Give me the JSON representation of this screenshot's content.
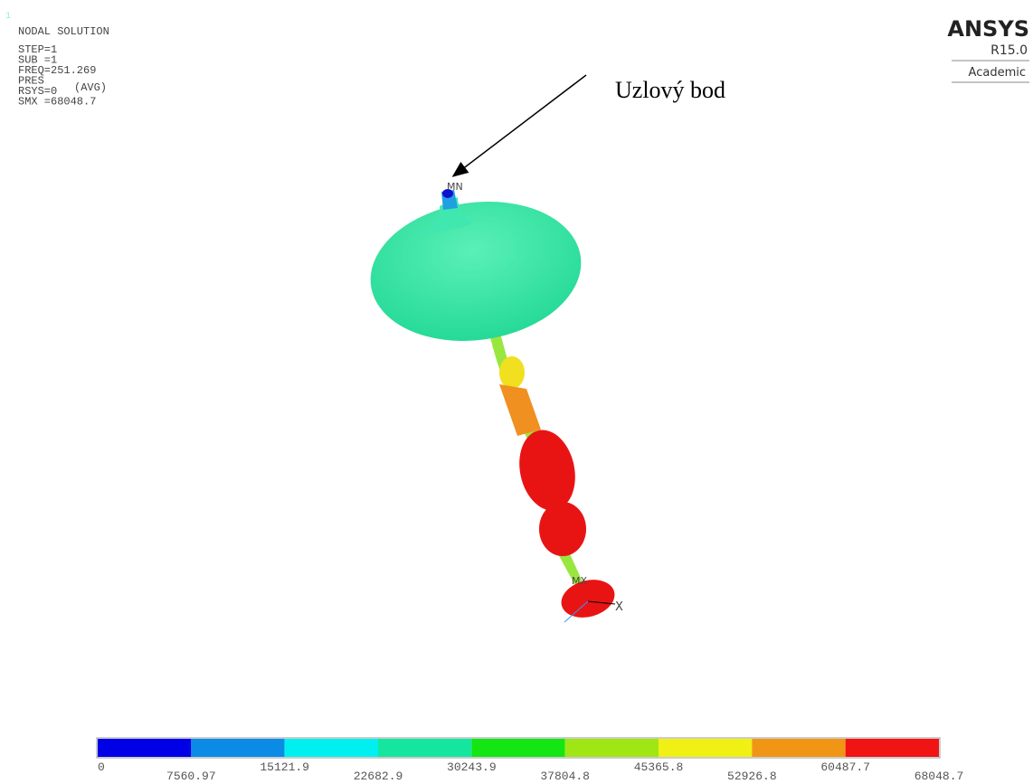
{
  "header": {
    "window_number": "1",
    "title": "NODAL SOLUTION",
    "lines": [
      "STEP=1",
      "SUB =1",
      "FREQ=251.269",
      "PRES",
      "RSYS=0",
      "SMX =68048.7"
    ],
    "avg": "(AVG)"
  },
  "logo": {
    "name": "ANSYS",
    "version": "R15.0",
    "edition": "Academic"
  },
  "annotation": {
    "text": "Uzlový bod"
  },
  "model_labels": {
    "min": "MN",
    "max": "MX",
    "axis": "X"
  },
  "legend": {
    "colors": [
      "#0000e6",
      "#0a8ce6",
      "#00f0f0",
      "#14e6a0",
      "#14e614",
      "#a0e614",
      "#f0f014",
      "#f09614",
      "#f01414"
    ],
    "labels": [
      "0",
      "7560.97",
      "15121.9",
      "22682.9",
      "30243.9",
      "37804.8",
      "45365.8",
      "52926.8",
      "60487.7",
      "68048.7"
    ]
  }
}
